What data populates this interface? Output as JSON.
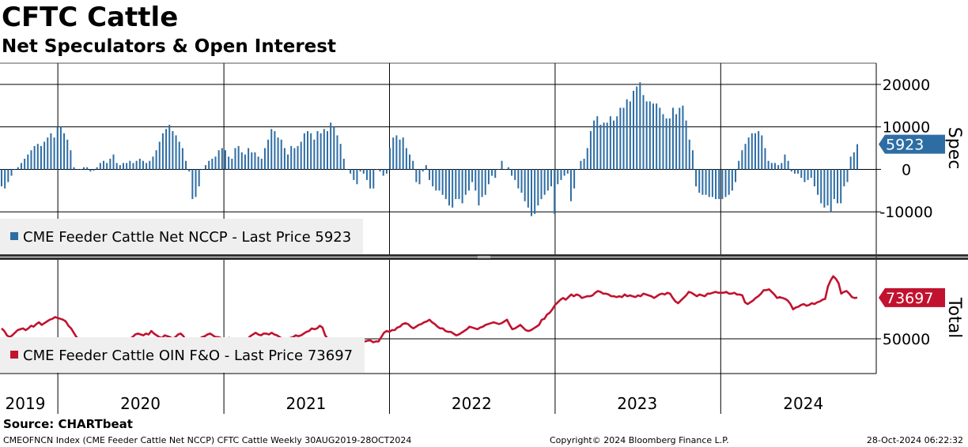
{
  "header": {
    "title": "CFTC Cattle",
    "subtitle": "Net Speculators & Open Interest"
  },
  "colors": {
    "spec": "#2e6da4",
    "total": "#c1122f",
    "grid": "#000000",
    "legend_bg": "#efefef"
  },
  "chart_data": [
    {
      "type": "bar",
      "title": "",
      "ylabel": "Spec",
      "ylim": [
        -20000,
        25000
      ],
      "y_ticks": [
        "20000",
        "10000",
        "0",
        "-10000"
      ],
      "y_tick_values": [
        20000,
        10000,
        0,
        -10000
      ],
      "legend": "CME Feeder Cattle Net NCCP - Last Price 5923",
      "last_value_label": "5923",
      "last_value": 5923,
      "x_start": "2019-08-30",
      "x_end": "2024-10-28",
      "series": [
        {
          "name": "CME Feeder Cattle Net NCCP",
          "values": [
            -4000,
            -4500,
            -3000,
            -1500,
            0,
            500,
            1500,
            2500,
            3500,
            4500,
            5500,
            6000,
            5500,
            6500,
            7500,
            8500,
            7500,
            10000,
            10000,
            8500,
            7000,
            4500,
            500,
            0,
            0,
            500,
            500,
            -500,
            -300,
            500,
            1500,
            2000,
            1500,
            2500,
            3500,
            1500,
            1000,
            1500,
            1500,
            2000,
            1500,
            2000,
            2500,
            2000,
            1500,
            2000,
            3000,
            4500,
            6500,
            8500,
            9500,
            10500,
            9000,
            8000,
            6500,
            5000,
            2000,
            -500,
            -7000,
            -6500,
            -4000,
            0,
            1000,
            2000,
            2500,
            3000,
            4500,
            5000,
            4500,
            3000,
            2500,
            5000,
            5500,
            4000,
            3500,
            5000,
            4000,
            4000,
            3000,
            2500,
            5000,
            7000,
            9500,
            9000,
            7500,
            7000,
            5000,
            3500,
            5500,
            5000,
            5500,
            6500,
            8500,
            9000,
            8500,
            7000,
            9000,
            8500,
            9500,
            9000,
            11000,
            10000,
            8000,
            6000,
            2500,
            0,
            -1000,
            -2500,
            -3500,
            -500,
            -1000,
            -2500,
            -4500,
            -4500,
            0,
            -500,
            -1500,
            -1000,
            5000,
            7500,
            8000,
            7000,
            7500,
            5000,
            3500,
            2000,
            -3000,
            -3500,
            -500,
            1000,
            -2500,
            -4000,
            -5000,
            -5000,
            -6000,
            -7000,
            -8500,
            -9000,
            -7000,
            -7000,
            -8000,
            -6000,
            -5000,
            -3000,
            -5000,
            -8500,
            -6500,
            -6000,
            -3500,
            -1500,
            -2000,
            0,
            2000,
            0,
            500,
            -1500,
            -2500,
            -4500,
            -5500,
            -7500,
            -9000,
            -11000,
            -10500,
            -8500,
            -7000,
            -6000,
            -5000,
            -4000,
            -10500,
            -3500,
            -2500,
            -1500,
            -1000,
            -7500,
            -4500,
            0,
            2000,
            2500,
            5000,
            9000,
            11500,
            12500,
            10500,
            11000,
            11000,
            12500,
            11500,
            12500,
            14500,
            14500,
            16500,
            16000,
            18500,
            19500,
            20500,
            17500,
            16000,
            16000,
            15500,
            15500,
            14500,
            13000,
            12000,
            12000,
            14500,
            13000,
            14500,
            15000,
            11500,
            7000,
            4500,
            -4000,
            -5500,
            -6000,
            -6000,
            -6500,
            -6500,
            -7000,
            -7000,
            -7000,
            -6500,
            -6000,
            -5000,
            -3000,
            2000,
            4500,
            6000,
            7500,
            8500,
            8500,
            9000,
            8000,
            5000,
            2000,
            1500,
            1500,
            1000,
            1500,
            3500,
            2000,
            -500,
            -1000,
            -1000,
            -2000,
            -3000,
            -2500,
            -2000,
            -4000,
            -6000,
            -8000,
            -9000,
            -8500,
            -10000,
            -7000,
            -8000,
            -8000,
            -4000,
            -3000,
            3000,
            4000,
            5923
          ]
        }
      ]
    },
    {
      "type": "line",
      "title": "",
      "ylabel": "Total",
      "ylim": [
        30000,
        95000
      ],
      "y_ticks": [
        "50000"
      ],
      "y_tick_values": [
        50000
      ],
      "legend": "CME Feeder Cattle OIN F&O - Last Price 73697",
      "last_value_label": "73697",
      "last_value": 73697,
      "series": [
        {
          "name": "CME Feeder Cattle OIN F&O",
          "values": [
            56000,
            54500,
            52000,
            51000,
            52000,
            53500,
            55000,
            55500,
            56000,
            55000,
            56000,
            57500,
            57000,
            58500,
            59500,
            58000,
            59000,
            60000,
            61000,
            61500,
            62500,
            62000,
            61500,
            61000,
            60000,
            57500,
            56000,
            53500,
            51000,
            49500,
            48000,
            48500,
            47500,
            48500,
            47500,
            46000,
            45500,
            44000,
            43500,
            43000,
            44500,
            44000,
            45000,
            46000,
            46500,
            48000,
            47500,
            48500,
            50000,
            51000,
            52500,
            53000,
            52500,
            52000,
            53000,
            52500,
            54500,
            53000,
            52000,
            51000,
            50500,
            52000,
            51500,
            51000,
            50000,
            51000,
            52500,
            53000,
            51500,
            49000,
            47500,
            47500,
            48500,
            49000,
            50000,
            51000,
            51500,
            52500,
            53000,
            52000,
            51000,
            51000,
            50500,
            50000,
            49500,
            50500,
            50000,
            49000,
            49000,
            49500,
            49000,
            49500,
            50000,
            51500,
            52500,
            53500,
            52500,
            52000,
            53000,
            53000,
            52500,
            53500,
            52500,
            52000,
            51000,
            50000,
            50000,
            50000,
            50500,
            51000,
            52000,
            51500,
            52000,
            53000,
            54000,
            54500,
            56000,
            55500,
            56000,
            57500,
            56500,
            52000,
            50000,
            49000,
            48500,
            49500,
            49000,
            49500,
            48000,
            47500,
            48000,
            48500,
            49000,
            49500,
            50000,
            49000,
            48500,
            49000,
            49000,
            48000,
            48500,
            48500,
            51000,
            53500,
            54500,
            54000,
            55000,
            55000,
            56500,
            57000,
            58500,
            59000,
            58500,
            57000,
            56000,
            57000,
            58000,
            58500,
            59500,
            60000,
            61000,
            59500,
            58500,
            57000,
            56000,
            56000,
            54500,
            54000,
            54000,
            53000,
            52000,
            52500,
            53500,
            54500,
            55500,
            57000,
            56500,
            56000,
            55500,
            56500,
            57000,
            58000,
            58500,
            59000,
            59500,
            59000,
            58500,
            59000,
            60000,
            61000,
            58000,
            55500,
            56000,
            57000,
            58000,
            56500,
            55000,
            54500,
            55000,
            56000,
            57000,
            58000,
            61000,
            61500,
            64000,
            65000,
            67000,
            69500,
            71000,
            72500,
            73500,
            72500,
            74000,
            75500,
            74500,
            75500,
            75000,
            73500,
            74000,
            74500,
            74500,
            75000,
            76500,
            77500,
            77000,
            76000,
            76000,
            75500,
            74500,
            74500,
            74000,
            74500,
            74000,
            75500,
            74500,
            75000,
            74500,
            74000,
            75000,
            74500,
            76000,
            75500,
            75000,
            74500,
            73500,
            74500,
            75500,
            76000,
            75500,
            76500,
            76000,
            73500,
            71500,
            70500,
            72000,
            73500,
            75000,
            77000,
            76500,
            75500,
            74500,
            75500,
            75000,
            74500,
            76000,
            76000,
            76500,
            77000,
            76500,
            76500,
            76500,
            77000,
            76000,
            76000,
            76500,
            75500,
            75500,
            75000,
            71000,
            70000,
            71000,
            72000,
            73500,
            74500,
            76000,
            78000,
            78000,
            78500,
            77000,
            75500,
            73500,
            74000,
            73500,
            73000,
            72000,
            70000,
            67000,
            68000,
            68500,
            69500,
            70000,
            69000,
            69500,
            70500,
            70000,
            71000,
            71500,
            72500,
            73000,
            80000,
            83500,
            86000,
            84500,
            82000,
            76000,
            77000,
            77500,
            76000,
            74000,
            73500,
            73697
          ]
        }
      ]
    }
  ],
  "x_axis": {
    "labels": [
      "2019",
      "2020",
      "2021",
      "2022",
      "2023",
      "2024"
    ],
    "label_dates": [
      "2019-07-01",
      "2020-07-01",
      "2021-07-01",
      "2022-07-01",
      "2023-07-01",
      "2024-07-01"
    ],
    "boundaries": [
      "2020-01-01",
      "2021-01-01",
      "2022-01-01",
      "2023-01-01",
      "2024-01-01"
    ]
  },
  "footer": {
    "source": "Source: CHARTbeat",
    "index_info": "CMEOFNCN Index (CME Feeder Cattle Net NCCP) CFTC Cattle  Weekly 30AUG2019-28OCT2024",
    "copyright": "Copyright© 2024 Bloomberg Finance L.P.",
    "timestamp": "28-Oct-2024 06:22:32"
  }
}
